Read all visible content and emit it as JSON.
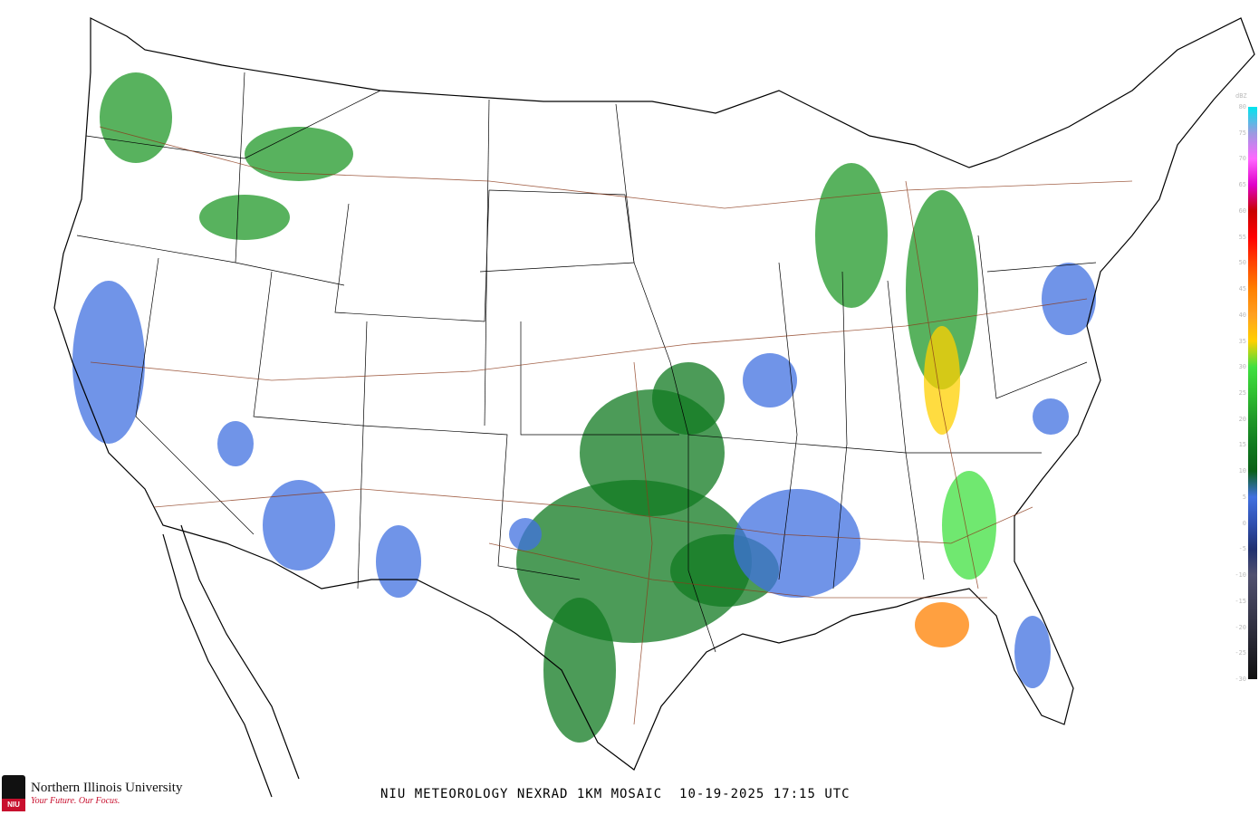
{
  "caption": {
    "title": "NIU METEOROLOGY NEXRAD 1KM MOSAIC",
    "date": "10-19-2025",
    "time": "17:15 UTC"
  },
  "logo": {
    "name": "Northern Illinois University",
    "tagline": "Your Future. Our Focus.",
    "mark": "NIU"
  },
  "legend": {
    "unit": "dBZ",
    "ticks": [
      "80",
      "75",
      "70",
      "65",
      "60",
      "55",
      "50",
      "45",
      "40",
      "35",
      "30",
      "25",
      "20",
      "15",
      "10",
      "5",
      "0",
      "-5",
      "-10",
      "-15",
      "-20",
      "-25",
      "-30"
    ],
    "colors": {
      "80": "#00e5ee",
      "75": "#9a9ae0",
      "70": "#ff66ff",
      "65": "#e000c8",
      "60": "#c80000",
      "55": "#ff0000",
      "50": "#ff4400",
      "45": "#ff8000",
      "40": "#ffa020",
      "35": "#ffd000",
      "30": "#40e040",
      "25": "#30c030",
      "20": "#209828",
      "15": "#107a20",
      "10": "#0a6018",
      "5": "#4070e0",
      "0": "#3050b0",
      "-5": "#203070",
      "-10": "#505070",
      "-15": "#404058",
      "-20": "#303040",
      "-25": "#202028",
      "-30": "#101010"
    }
  },
  "map": {
    "background": "#ffffff",
    "boundary_color": "#000000",
    "highway_color": "#8b3a1a"
  }
}
